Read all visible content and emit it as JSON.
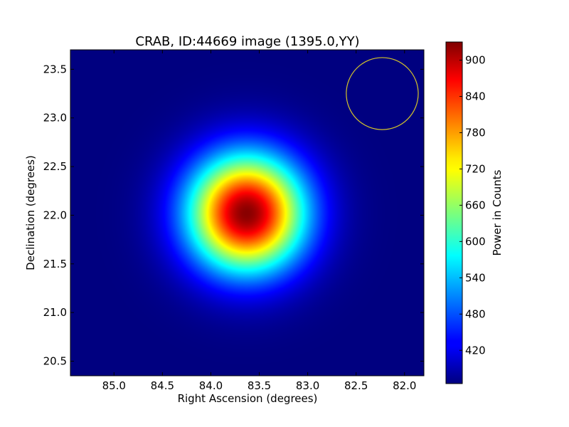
{
  "chart_data": {
    "type": "heatmap",
    "title": "CRAB, ID:44669 image (1395.0,YY)",
    "xlabel": "Right Ascension (degrees)",
    "ylabel": "Declination (degrees)",
    "xlim": [
      85.45,
      81.8
    ],
    "ylim": [
      20.35,
      23.7
    ],
    "x_inverted": true,
    "xticks": [
      85.0,
      84.5,
      84.0,
      83.5,
      83.0,
      82.5,
      82.0
    ],
    "xtick_labels": [
      "85.0",
      "84.5",
      "84.0",
      "83.5",
      "83.0",
      "82.5",
      "82.0"
    ],
    "yticks": [
      20.5,
      21.0,
      21.5,
      22.0,
      22.5,
      23.0,
      23.5
    ],
    "ytick_labels": [
      "20.5",
      "21.0",
      "21.5",
      "22.0",
      "22.5",
      "23.0",
      "23.5"
    ],
    "colormap": "jet",
    "colorbar": {
      "label": "Power in Counts",
      "range": [
        365,
        930
      ],
      "ticks": [
        420,
        480,
        540,
        600,
        660,
        720,
        780,
        840,
        900
      ],
      "tick_labels": [
        "420",
        "480",
        "540",
        "600",
        "660",
        "720",
        "780",
        "840",
        "900"
      ]
    },
    "source": {
      "ra": 83.63,
      "dec": 22.02,
      "peak": 925,
      "background": 365,
      "sigma_deg": 0.42
    },
    "marker_circle": {
      "ra": 82.23,
      "dec": 23.25,
      "radius_deg": 0.37,
      "color": "#d4c42a"
    }
  }
}
